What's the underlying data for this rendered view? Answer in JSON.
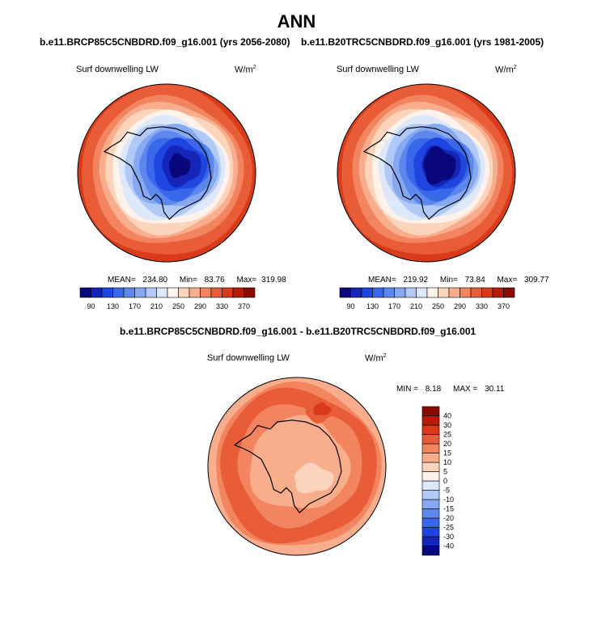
{
  "page_title": "ANN",
  "panels": [
    {
      "case_title": "b.e11.BRCP85C5CNBDRD.f09_g16.001 (yrs 2056-2080)",
      "variable": "Surf downwelling LW",
      "units_base": "W/m",
      "units_exp": "2",
      "stats": {
        "mean_label": "MEAN=",
        "mean": "234.80",
        "min_label": "Min=",
        "min": "83.76",
        "max_label": "Max=",
        "max": "319.98"
      }
    },
    {
      "case_title": "b.e11.B20TRC5CNBDRD.f09_g16.001 (yrs 1981-2005)",
      "variable": "Surf downwelling LW",
      "units_base": "W/m",
      "units_exp": "2",
      "stats": {
        "mean_label": "MEAN=",
        "mean": "219.92",
        "min_label": "Min=",
        "min": "73.84",
        "max_label": "Max=",
        "max": "309.77"
      }
    }
  ],
  "diff_panel": {
    "case_title": "b.e11.BRCP85C5CNBDRD.f09_g16.001 - b.e11.B20TRC5CNBDRD.f09_g16.001",
    "variable": "Surf downwelling LW",
    "units_base": "W/m",
    "units_exp": "2",
    "stats": {
      "min_label": "MIN =",
      "min": "8.18",
      "max_label": "MAX =",
      "max": "30.11"
    }
  },
  "chart_data": [
    {
      "type": "heatmap",
      "projection": "south-polar-stereographic",
      "title": "b.e11.BRCP85C5CNBDRD.f09_g16.001 (yrs 2056-2080)",
      "variable": "Surf downwelling LW",
      "units": "W/m2",
      "mean": 234.8,
      "min": 83.76,
      "max": 319.98,
      "colorbar": {
        "orientation": "horizontal",
        "levels": [
          90,
          110,
          130,
          150,
          170,
          190,
          210,
          230,
          250,
          270,
          290,
          310,
          330,
          350,
          370
        ],
        "tick_labels": [
          "90",
          "130",
          "170",
          "210",
          "250",
          "290",
          "330",
          "370"
        ],
        "colors": [
          "#08087a",
          "#1525b8",
          "#1f45e0",
          "#3a68ea",
          "#5c88ee",
          "#86a9f2",
          "#b1c9f6",
          "#dde8fa",
          "#fff2ea",
          "#fcd4bc",
          "#f8ae8c",
          "#f2845f",
          "#e95c38",
          "#d83a1a",
          "#b51c0a",
          "#8a0b02"
        ]
      }
    },
    {
      "type": "heatmap",
      "projection": "south-polar-stereographic",
      "title": "b.e11.B20TRC5CNBDRD.f09_g16.001 (yrs 1981-2005)",
      "variable": "Surf downwelling LW",
      "units": "W/m2",
      "mean": 219.92,
      "min": 73.84,
      "max": 309.77,
      "colorbar": {
        "orientation": "horizontal",
        "levels": [
          90,
          110,
          130,
          150,
          170,
          190,
          210,
          230,
          250,
          270,
          290,
          310,
          330,
          350,
          370
        ],
        "tick_labels": [
          "90",
          "130",
          "170",
          "210",
          "250",
          "290",
          "330",
          "370"
        ],
        "colors": [
          "#08087a",
          "#1525b8",
          "#1f45e0",
          "#3a68ea",
          "#5c88ee",
          "#86a9f2",
          "#b1c9f6",
          "#dde8fa",
          "#fff2ea",
          "#fcd4bc",
          "#f8ae8c",
          "#f2845f",
          "#e95c38",
          "#d83a1a",
          "#b51c0a",
          "#8a0b02"
        ]
      }
    },
    {
      "type": "heatmap",
      "projection": "south-polar-stereographic",
      "title": "b.e11.BRCP85C5CNBDRD.f09_g16.001 - b.e11.B20TRC5CNBDRD.f09_g16.001",
      "variable": "Surf downwelling LW",
      "units": "W/m2",
      "min": 8.18,
      "max": 30.11,
      "colorbar": {
        "orientation": "vertical",
        "levels": [
          -40,
          -30,
          -25,
          -20,
          -15,
          -10,
          -5,
          0,
          5,
          10,
          15,
          20,
          25,
          30,
          40
        ],
        "tick_labels": [
          "-40",
          "-30",
          "-25",
          "-20",
          "-15",
          "-10",
          "-5",
          "0",
          "5",
          "10",
          "15",
          "20",
          "25",
          "30",
          "40"
        ],
        "colors": [
          "#08087a",
          "#1525b8",
          "#1f45e0",
          "#3a68ea",
          "#5c88ee",
          "#86a9f2",
          "#b1c9f6",
          "#dde8fa",
          "#fff2ea",
          "#fcd4bc",
          "#f8ae8c",
          "#f2845f",
          "#e95c38",
          "#d83a1a",
          "#b51c0a",
          "#8a0b02"
        ]
      }
    }
  ]
}
